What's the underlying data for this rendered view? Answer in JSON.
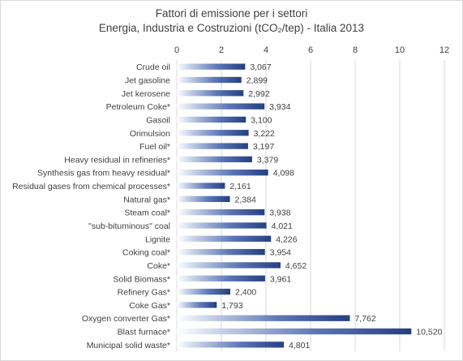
{
  "chart_data": {
    "type": "bar",
    "orientation": "horizontal",
    "title": "Fattori di emissione per i settori",
    "subtitle": "Energia, Industria e Costruzioni (tCO₂/tep) - Italia 2013",
    "xlabel": "",
    "ylabel": "",
    "xlim": [
      0,
      12
    ],
    "x_ticks": [
      0,
      2,
      4,
      6,
      8,
      10,
      12
    ],
    "x_axis_position": "top",
    "grid": true,
    "legend": "none",
    "bar_color": "#2f4b8f",
    "categories": [
      "Crude oil",
      "Jet gasoline",
      "Jet kerosene",
      "Petroleum Coke*",
      "Gasoil",
      "Orimulsion",
      "Fuel oil*",
      "Heavy residual in refineries*",
      "Synthesis gas from heavy residual*",
      "Residual gases from chemical processes*",
      "Natural gas*",
      "Steam coal*",
      "\"sub-bituminous\" coal",
      "Lignite",
      "Coking coal*",
      "Coke*",
      "Solid Biomass*",
      "Refinery Gas*",
      "Coke Gas*",
      "Oxygen converter Gas*",
      "Blast furnace*",
      "Municipal solid waste*"
    ],
    "values": [
      3.067,
      2.899,
      2.992,
      3.934,
      3.1,
      3.222,
      3.197,
      3.379,
      4.098,
      2.161,
      2.384,
      3.938,
      4.021,
      4.226,
      3.954,
      4.652,
      3.961,
      2.4,
      1.793,
      7.762,
      10.52,
      4.801
    ],
    "value_labels": [
      "3,067",
      "2,899",
      "2,992",
      "3,934",
      "3,100",
      "3,222",
      "3,197",
      "3,379",
      "4,098",
      "2,161",
      "2,384",
      "3,938",
      "4,021",
      "4,226",
      "3,954",
      "4,652",
      "3,961",
      "2,400",
      "1,793",
      "7,762",
      "10,520",
      "4,801"
    ]
  }
}
